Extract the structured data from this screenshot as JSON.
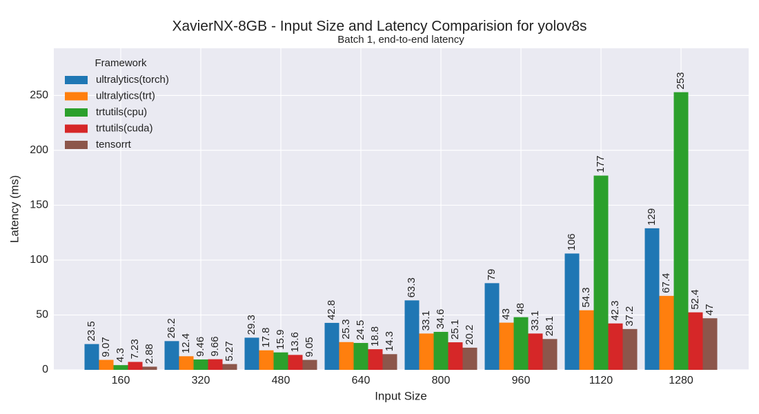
{
  "chart_data": {
    "type": "bar",
    "title": "XavierNX-8GB - Input Size and Latency Comparision for yolov8s",
    "subtitle": "Batch 1, end-to-end latency",
    "x_label": "Input Size",
    "y_label": "Latency (ms)",
    "legend_title": "Framework",
    "legend": "upper left",
    "grid": true,
    "categories": [
      "160",
      "320",
      "480",
      "640",
      "800",
      "960",
      "1120",
      "1280"
    ],
    "series": [
      {
        "name": "ultralytics(torch)",
        "color": "#1f77b4",
        "values": [
          23.5,
          26.2,
          29.3,
          42.8,
          63.3,
          79,
          106,
          129
        ]
      },
      {
        "name": "ultralytics(trt)",
        "color": "#ff7f0e",
        "values": [
          9.07,
          12.4,
          17.8,
          25.3,
          33.1,
          43,
          54.3,
          67.4
        ]
      },
      {
        "name": "trtutils(cpu)",
        "color": "#2ca02c",
        "values": [
          4.3,
          9.46,
          15.9,
          24.5,
          34.6,
          48,
          177,
          253
        ]
      },
      {
        "name": "trtutils(cuda)",
        "color": "#d62728",
        "values": [
          7.23,
          9.66,
          13.6,
          18.8,
          25.1,
          33.1,
          42.3,
          52.4
        ]
      },
      {
        "name": "tensorrt",
        "color": "#8c564b",
        "values": [
          2.88,
          5.27,
          9.05,
          14.3,
          20.2,
          28.1,
          37.2,
          47
        ]
      }
    ],
    "ylim": [
      0,
      293
    ],
    "yticks": [
      0,
      50,
      100,
      150,
      200,
      250
    ]
  }
}
